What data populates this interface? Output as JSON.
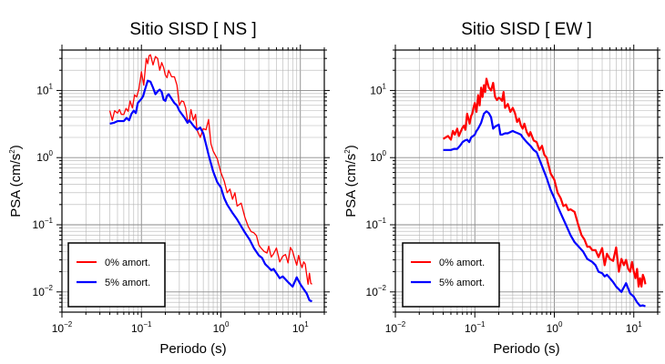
{
  "chart_data": [
    {
      "type": "line",
      "title": "Sitio SISD [ NS ]",
      "xlabel": "Periodo (s)",
      "ylabel_prefix": "PSA (cm/s",
      "ylabel_sup": "2",
      "ylabel_suffix": ")",
      "xscale": "log",
      "yscale": "log",
      "xlim": [
        0.01,
        20
      ],
      "ylim": [
        0.005,
        40
      ],
      "grid": true,
      "legend_position": "bottom-left",
      "x_ticks": [
        {
          "value": 0.01,
          "base": "10",
          "exp": "−2"
        },
        {
          "value": 0.1,
          "base": "10",
          "exp": "−1"
        },
        {
          "value": 1,
          "base": "10",
          "exp": "0"
        },
        {
          "value": 10,
          "base": "10",
          "exp": "1"
        }
      ],
      "y_ticks": [
        {
          "value": 0.01,
          "base": "10",
          "exp": "−2"
        },
        {
          "value": 0.1,
          "base": "10",
          "exp": "−1"
        },
        {
          "value": 1,
          "base": "10",
          "exp": "0"
        },
        {
          "value": 10,
          "base": "10",
          "exp": "1"
        }
      ],
      "series": [
        {
          "name": "0% amort.",
          "color": "#ff0000",
          "width": 1.3,
          "x": [
            0.04,
            0.043,
            0.046,
            0.05,
            0.053,
            0.056,
            0.06,
            0.064,
            0.068,
            0.072,
            0.077,
            0.082,
            0.087,
            0.093,
            0.1,
            0.107,
            0.115,
            0.12,
            0.125,
            0.13,
            0.14,
            0.15,
            0.16,
            0.17,
            0.18,
            0.19,
            0.2,
            0.21,
            0.22,
            0.24,
            0.26,
            0.28,
            0.3,
            0.32,
            0.34,
            0.36,
            0.38,
            0.4,
            0.42,
            0.45,
            0.48,
            0.5,
            0.55,
            0.6,
            0.65,
            0.7,
            0.75,
            0.8,
            0.9,
            1.0,
            1.1,
            1.2,
            1.3,
            1.4,
            1.5,
            1.6,
            1.8,
            2.0,
            2.2,
            2.4,
            2.6,
            2.8,
            3.0,
            3.2,
            3.5,
            3.8,
            4.0,
            4.3,
            4.6,
            5.0,
            5.5,
            6.0,
            6.5,
            7.0,
            7.5,
            8.0,
            8.5,
            9.0,
            9.5,
            10,
            10.5,
            11,
            11.5,
            12,
            12.5,
            13,
            13.5,
            14
          ],
          "y": [
            5.0,
            3.6,
            5.0,
            4.6,
            5.2,
            4.4,
            4.4,
            5.4,
            4.9,
            7.0,
            5.5,
            8.6,
            8.0,
            10.5,
            19,
            12,
            30,
            25,
            33,
            34,
            24,
            32,
            30,
            20,
            26,
            22,
            17,
            15.5,
            20,
            16,
            16,
            12,
            6,
            7,
            6.8,
            5.5,
            3.6,
            3.4,
            5.2,
            3.6,
            4.4,
            2.6,
            2.0,
            2.7,
            2.6,
            3.7,
            1.6,
            1.25,
            0.96,
            0.6,
            0.45,
            0.3,
            0.34,
            0.24,
            0.3,
            0.19,
            0.21,
            0.13,
            0.095,
            0.079,
            0.076,
            0.069,
            0.05,
            0.045,
            0.04,
            0.038,
            0.048,
            0.033,
            0.037,
            0.045,
            0.028,
            0.034,
            0.036,
            0.027,
            0.046,
            0.04,
            0.031,
            0.025,
            0.035,
            0.027,
            0.023,
            0.028,
            0.026,
            0.018,
            0.013,
            0.019,
            0.0135,
            0.013
          ]
        },
        {
          "name": "5% amort.",
          "color": "#0000ff",
          "width": 2.2,
          "x": [
            0.04,
            0.045,
            0.05,
            0.055,
            0.06,
            0.065,
            0.07,
            0.075,
            0.08,
            0.085,
            0.09,
            0.1,
            0.105,
            0.11,
            0.12,
            0.13,
            0.14,
            0.15,
            0.16,
            0.17,
            0.18,
            0.19,
            0.2,
            0.21,
            0.22,
            0.24,
            0.26,
            0.28,
            0.3,
            0.32,
            0.35,
            0.38,
            0.4,
            0.45,
            0.5,
            0.55,
            0.6,
            0.7,
            0.8,
            0.9,
            1.0,
            1.1,
            1.2,
            1.4,
            1.6,
            1.8,
            2.0,
            2.3,
            2.6,
            3.0,
            3.3,
            3.6,
            4.0,
            4.3,
            4.6,
            5.0,
            5.5,
            6.0,
            7.0,
            8.0,
            9.0,
            10,
            11,
            12,
            13,
            14
          ],
          "y": [
            3.2,
            3.3,
            3.5,
            3.5,
            3.5,
            3.9,
            3.6,
            4.5,
            5.0,
            4.6,
            6.5,
            7.5,
            8.2,
            10,
            14,
            13.5,
            11,
            8.8,
            9.7,
            10.3,
            9.5,
            7.3,
            7.0,
            8.3,
            8.8,
            7.5,
            6.5,
            6.0,
            5.0,
            4.5,
            3.9,
            3.3,
            3.6,
            3.0,
            2.6,
            2.8,
            2.3,
            1.1,
            0.62,
            0.43,
            0.36,
            0.25,
            0.2,
            0.15,
            0.12,
            0.095,
            0.077,
            0.06,
            0.045,
            0.035,
            0.032,
            0.026,
            0.023,
            0.021,
            0.022,
            0.019,
            0.016,
            0.017,
            0.014,
            0.012,
            0.0165,
            0.013,
            0.011,
            0.0095,
            0.0075,
            0.0072
          ]
        }
      ]
    },
    {
      "type": "line",
      "title": "Sitio SISD [ EW ]",
      "xlabel": "Periodo (s)",
      "ylabel_prefix": "PSA (cm/s",
      "ylabel_sup": "2",
      "ylabel_suffix": ")",
      "xscale": "log",
      "yscale": "log",
      "xlim": [
        0.01,
        20
      ],
      "ylim": [
        0.005,
        40
      ],
      "grid": true,
      "legend_position": "bottom-left",
      "x_ticks": [
        {
          "value": 0.01,
          "base": "10",
          "exp": "−2"
        },
        {
          "value": 0.1,
          "base": "10",
          "exp": "−1"
        },
        {
          "value": 1,
          "base": "10",
          "exp": "0"
        },
        {
          "value": 10,
          "base": "10",
          "exp": "1"
        }
      ],
      "y_ticks": [
        {
          "value": 0.01,
          "base": "10",
          "exp": "−2"
        },
        {
          "value": 0.1,
          "base": "10",
          "exp": "−1"
        },
        {
          "value": 1,
          "base": "10",
          "exp": "0"
        },
        {
          "value": 10,
          "base": "10",
          "exp": "1"
        }
      ],
      "series": [
        {
          "name": "0% amort.",
          "color": "#ff0000",
          "width": 2.2,
          "x": [
            0.04,
            0.043,
            0.046,
            0.05,
            0.053,
            0.056,
            0.06,
            0.063,
            0.066,
            0.07,
            0.073,
            0.076,
            0.08,
            0.083,
            0.086,
            0.09,
            0.093,
            0.096,
            0.1,
            0.105,
            0.11,
            0.115,
            0.12,
            0.125,
            0.13,
            0.135,
            0.14,
            0.15,
            0.16,
            0.17,
            0.18,
            0.19,
            0.2,
            0.21,
            0.22,
            0.23,
            0.24,
            0.26,
            0.28,
            0.3,
            0.32,
            0.34,
            0.36,
            0.38,
            0.4,
            0.42,
            0.45,
            0.48,
            0.5,
            0.55,
            0.6,
            0.65,
            0.7,
            0.75,
            0.8,
            0.9,
            1.0,
            1.1,
            1.2,
            1.3,
            1.4,
            1.5,
            1.6,
            1.8,
            2.0,
            2.2,
            2.4,
            2.6,
            2.8,
            3.0,
            3.3,
            3.6,
            4.0,
            4.3,
            4.6,
            5.0,
            5.5,
            6.0,
            6.5,
            7.0,
            7.5,
            8.0,
            8.5,
            9.0,
            9.5,
            10,
            10.5,
            11,
            11.5,
            12,
            12.5,
            13,
            13.5,
            14
          ],
          "y": [
            1.9,
            2.0,
            2.1,
            1.85,
            2.5,
            2.2,
            2.7,
            2.1,
            2.4,
            2.8,
            3.0,
            2.6,
            4.5,
            3.8,
            3.2,
            4.2,
            4.5,
            5.5,
            6.5,
            4.8,
            8.5,
            6.0,
            11,
            8.0,
            12,
            9.5,
            15,
            11,
            10,
            13,
            8,
            7.2,
            7.8,
            7.5,
            7.0,
            9.5,
            5.5,
            6.3,
            4.8,
            5.5,
            4.6,
            3.4,
            3.8,
            3.0,
            2.7,
            3.2,
            2.4,
            2.1,
            2.4,
            1.8,
            1.7,
            1.3,
            1.5,
            1.1,
            1.0,
            0.58,
            0.47,
            0.3,
            0.25,
            0.19,
            0.2,
            0.165,
            0.17,
            0.155,
            0.1,
            0.07,
            0.06,
            0.047,
            0.047,
            0.042,
            0.042,
            0.033,
            0.045,
            0.025,
            0.037,
            0.031,
            0.029,
            0.046,
            0.02,
            0.031,
            0.025,
            0.03,
            0.022,
            0.02,
            0.028,
            0.02,
            0.016,
            0.022,
            0.012,
            0.016,
            0.012,
            0.018,
            0.016,
            0.013
          ]
        },
        {
          "name": "5% amort.",
          "color": "#0000ff",
          "width": 2.2,
          "x": [
            0.04,
            0.045,
            0.05,
            0.055,
            0.06,
            0.065,
            0.07,
            0.075,
            0.08,
            0.085,
            0.09,
            0.1,
            0.105,
            0.11,
            0.12,
            0.13,
            0.14,
            0.15,
            0.16,
            0.17,
            0.18,
            0.19,
            0.2,
            0.21,
            0.22,
            0.24,
            0.26,
            0.28,
            0.3,
            0.32,
            0.35,
            0.38,
            0.4,
            0.45,
            0.5,
            0.55,
            0.6,
            0.7,
            0.8,
            0.9,
            1.0,
            1.1,
            1.2,
            1.4,
            1.6,
            1.8,
            2.0,
            2.3,
            2.6,
            3.0,
            3.3,
            3.6,
            4.0,
            4.3,
            4.6,
            5.0,
            5.5,
            6.0,
            7.0,
            8.0,
            9.0,
            10,
            11,
            12,
            13,
            14
          ],
          "y": [
            1.3,
            1.3,
            1.3,
            1.35,
            1.35,
            1.5,
            1.7,
            1.8,
            1.85,
            1.7,
            2.0,
            2.2,
            2.5,
            2.7,
            3.3,
            4.5,
            4.9,
            4.6,
            4.0,
            2.7,
            2.9,
            3.0,
            3.1,
            2.2,
            2.2,
            2.3,
            2.3,
            2.4,
            2.5,
            2.4,
            2.3,
            2.2,
            2.0,
            1.7,
            1.5,
            1.3,
            1.2,
            0.75,
            0.5,
            0.33,
            0.25,
            0.19,
            0.15,
            0.1,
            0.07,
            0.055,
            0.048,
            0.04,
            0.031,
            0.028,
            0.025,
            0.02,
            0.019,
            0.017,
            0.018,
            0.016,
            0.014,
            0.012,
            0.01,
            0.0135,
            0.0095,
            0.0085,
            0.007,
            0.0062,
            0.0063,
            0.0061
          ]
        }
      ]
    }
  ]
}
